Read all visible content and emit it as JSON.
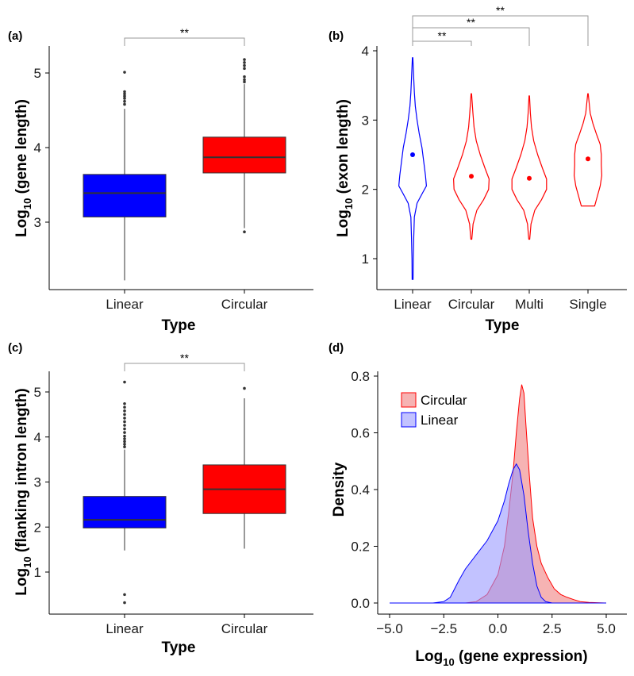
{
  "chart_data": [
    {
      "panel": "(a)",
      "type": "box",
      "xlabel": "Type",
      "ylabel_main": "Log",
      "ylabel_sub": "10",
      "ylabel_rest": " (gene length)",
      "yticks": [
        "3",
        "4",
        "5"
      ],
      "ylim": [
        2.15,
        5.35
      ],
      "significance": "**",
      "brackets": [
        {
          "from": 0,
          "to": 1,
          "label": "**"
        }
      ],
      "categories": [
        "Linear",
        "Circular"
      ],
      "colors": [
        "#0000FF",
        "#FF0000"
      ],
      "boxes": [
        {
          "category": "Linear",
          "q1": 3.07,
          "median": 3.39,
          "q3": 3.64,
          "whisker_low": 2.22,
          "whisker_high": 4.52,
          "outliers": [
            4.58,
            4.62,
            4.66,
            4.69,
            4.72,
            4.75,
            5.01
          ]
        },
        {
          "category": "Circular",
          "q1": 3.66,
          "median": 3.87,
          "q3": 4.14,
          "whisker_low": 2.92,
          "whisker_high": 4.85,
          "outliers": [
            2.87,
            4.88,
            4.91,
            4.95,
            5.06,
            5.1,
            5.14,
            5.18
          ]
        }
      ]
    },
    {
      "panel": "(b)",
      "type": "violin",
      "xlabel": "Type",
      "ylabel_main": "Log",
      "ylabel_sub": "10",
      "ylabel_rest": " (exon length)",
      "yticks": [
        "1",
        "2",
        "3",
        "4"
      ],
      "ylim": [
        0.6,
        4.05
      ],
      "categories": [
        "Linear",
        "Circular",
        "Multi",
        "Single"
      ],
      "colors": [
        "#0000FF",
        "#FF0000",
        "#FF0000",
        "#FF0000"
      ],
      "brackets": [
        {
          "from": 0,
          "to": 1,
          "label": "**"
        },
        {
          "from": 0,
          "to": 2,
          "label": "**"
        },
        {
          "from": 0,
          "to": 3,
          "label": "**"
        }
      ],
      "violins": [
        {
          "category": "Linear",
          "mean": 2.5,
          "profile": [
            [
              0.7,
              0.02
            ],
            [
              1.0,
              0.03
            ],
            [
              1.3,
              0.05
            ],
            [
              1.6,
              0.08
            ],
            [
              1.8,
              0.2
            ],
            [
              1.95,
              0.45
            ],
            [
              2.05,
              0.62
            ],
            [
              2.2,
              0.58
            ],
            [
              2.4,
              0.5
            ],
            [
              2.6,
              0.42
            ],
            [
              2.8,
              0.3
            ],
            [
              3.0,
              0.2
            ],
            [
              3.2,
              0.12
            ],
            [
              3.4,
              0.08
            ],
            [
              3.6,
              0.05
            ],
            [
              3.9,
              0.01
            ]
          ]
        },
        {
          "category": "Circular",
          "mean": 2.19,
          "profile": [
            [
              1.28,
              0.02
            ],
            [
              1.5,
              0.08
            ],
            [
              1.7,
              0.25
            ],
            [
              1.85,
              0.55
            ],
            [
              2.0,
              0.78
            ],
            [
              2.15,
              0.8
            ],
            [
              2.3,
              0.62
            ],
            [
              2.5,
              0.4
            ],
            [
              2.7,
              0.22
            ],
            [
              2.9,
              0.12
            ],
            [
              3.1,
              0.07
            ],
            [
              3.38,
              0.01
            ]
          ]
        },
        {
          "category": "Multi",
          "mean": 2.16,
          "profile": [
            [
              1.28,
              0.02
            ],
            [
              1.5,
              0.08
            ],
            [
              1.7,
              0.25
            ],
            [
              1.85,
              0.55
            ],
            [
              2.0,
              0.78
            ],
            [
              2.15,
              0.78
            ],
            [
              2.3,
              0.6
            ],
            [
              2.5,
              0.38
            ],
            [
              2.7,
              0.2
            ],
            [
              2.9,
              0.1
            ],
            [
              3.1,
              0.05
            ],
            [
              3.35,
              0.01
            ]
          ]
        },
        {
          "category": "Single",
          "mean": 2.44,
          "profile": [
            [
              1.76,
              0.3
            ],
            [
              1.9,
              0.42
            ],
            [
              2.05,
              0.55
            ],
            [
              2.2,
              0.62
            ],
            [
              2.35,
              0.6
            ],
            [
              2.5,
              0.6
            ],
            [
              2.65,
              0.55
            ],
            [
              2.8,
              0.38
            ],
            [
              2.95,
              0.22
            ],
            [
              3.1,
              0.1
            ],
            [
              3.38,
              0.01
            ]
          ]
        }
      ]
    },
    {
      "panel": "(c)",
      "type": "box",
      "xlabel": "Type",
      "ylabel_main": "Log",
      "ylabel_sub": "10",
      "ylabel_rest": " (flanking intron length)",
      "yticks": [
        "1",
        "2",
        "3",
        "4",
        "5"
      ],
      "ylim": [
        0.2,
        5.5
      ],
      "significance": "**",
      "brackets": [
        {
          "from": 0,
          "to": 1,
          "label": "**"
        }
      ],
      "categories": [
        "Linear",
        "Circular"
      ],
      "colors": [
        "#0000FF",
        "#FF0000"
      ],
      "boxes": [
        {
          "category": "Linear",
          "q1": 1.98,
          "median": 2.16,
          "q3": 2.68,
          "whisker_low": 1.48,
          "whisker_high": 3.72,
          "outliers": [
            0.32,
            0.5,
            3.78,
            3.84,
            3.9,
            3.96,
            4.02,
            4.1,
            4.18,
            4.26,
            4.34,
            4.42,
            4.5,
            4.58,
            4.66,
            4.74,
            5.22
          ]
        },
        {
          "category": "Circular",
          "q1": 2.3,
          "median": 2.84,
          "q3": 3.38,
          "whisker_low": 1.52,
          "whisker_high": 4.86,
          "outliers": [
            5.08
          ]
        }
      ]
    },
    {
      "panel": "(d)",
      "type": "area",
      "xlabel_main": "Log",
      "xlabel_sub": "10",
      "xlabel_rest": " (gene expression)",
      "ylabel": "Density",
      "xticks": [
        "−5.0",
        "−2.5",
        "0.0",
        "2.5",
        "5.0"
      ],
      "xtick_values": [
        -5.0,
        -2.5,
        0.0,
        2.5,
        5.0
      ],
      "yticks": [
        "0.0",
        "0.2",
        "0.4",
        "0.6",
        "0.8"
      ],
      "ytick_values": [
        0.0,
        0.2,
        0.4,
        0.6,
        0.8
      ],
      "xlim": [
        -5.5,
        5.4
      ],
      "ylim": [
        -0.03,
        0.84
      ],
      "legend_position": "top-left",
      "series": [
        {
          "name": "Circular",
          "fill": "#F08080",
          "stroke": "#FF0000",
          "points": [
            [
              -5.0,
              0
            ],
            [
              -1.5,
              0
            ],
            [
              -1.0,
              0.005
            ],
            [
              -0.5,
              0.03
            ],
            [
              0.0,
              0.1
            ],
            [
              0.3,
              0.2
            ],
            [
              0.5,
              0.32
            ],
            [
              0.7,
              0.46
            ],
            [
              0.85,
              0.6
            ],
            [
              1.0,
              0.72
            ],
            [
              1.1,
              0.77
            ],
            [
              1.2,
              0.74
            ],
            [
              1.3,
              0.62
            ],
            [
              1.45,
              0.45
            ],
            [
              1.6,
              0.3
            ],
            [
              1.8,
              0.2
            ],
            [
              2.0,
              0.14
            ],
            [
              2.3,
              0.09
            ],
            [
              2.6,
              0.05
            ],
            [
              2.9,
              0.03
            ],
            [
              3.2,
              0.02
            ],
            [
              3.5,
              0.012
            ],
            [
              3.8,
              0.005
            ],
            [
              4.2,
              0.002
            ],
            [
              5.0,
              0
            ]
          ]
        },
        {
          "name": "Linear",
          "fill": "#9999FF",
          "stroke": "#0000FF",
          "points": [
            [
              -5.0,
              0
            ],
            [
              -3.0,
              0
            ],
            [
              -2.5,
              0.005
            ],
            [
              -2.2,
              0.02
            ],
            [
              -2.0,
              0.05
            ],
            [
              -1.8,
              0.08
            ],
            [
              -1.5,
              0.12
            ],
            [
              -1.0,
              0.17
            ],
            [
              -0.5,
              0.22
            ],
            [
              0.0,
              0.29
            ],
            [
              0.3,
              0.36
            ],
            [
              0.5,
              0.42
            ],
            [
              0.7,
              0.47
            ],
            [
              0.85,
              0.49
            ],
            [
              1.0,
              0.47
            ],
            [
              1.2,
              0.38
            ],
            [
              1.4,
              0.25
            ],
            [
              1.6,
              0.14
            ],
            [
              1.8,
              0.06
            ],
            [
              2.0,
              0.02
            ],
            [
              2.2,
              0.005
            ],
            [
              2.5,
              0
            ],
            [
              5.0,
              0
            ]
          ]
        }
      ]
    }
  ]
}
